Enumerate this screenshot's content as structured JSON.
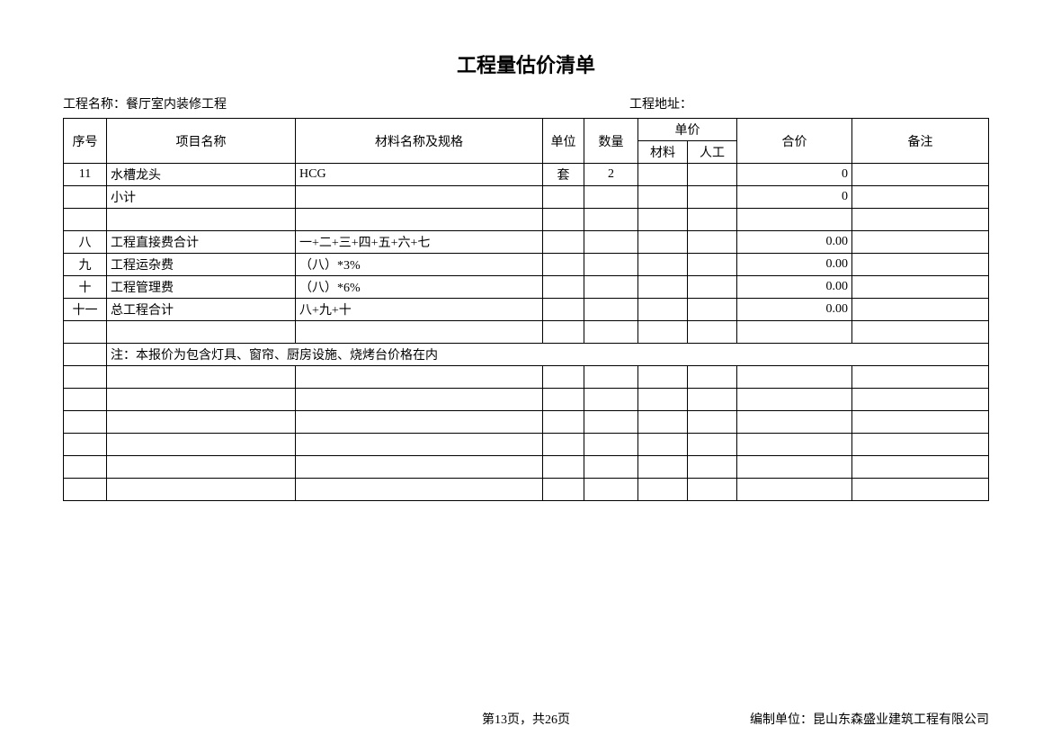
{
  "title": "工程量估价清单",
  "project_name_label": "工程名称：餐厅室内装修工程",
  "project_addr_label": "工程地址：",
  "header": {
    "seq": "序号",
    "name": "项目名称",
    "spec": "材料名称及规格",
    "unit": "单位",
    "qty": "数量",
    "price_group": "单价",
    "material": "材料",
    "labor": "人工",
    "total": "合价",
    "remark": "备注"
  },
  "rows": [
    {
      "seq": "11",
      "name": "水槽龙头",
      "spec": "HCG",
      "unit": "套",
      "qty": "2",
      "material": "",
      "labor": "",
      "total": "0",
      "remark": ""
    },
    {
      "seq": "",
      "name": "小计",
      "spec": "",
      "unit": "",
      "qty": "",
      "material": "",
      "labor": "",
      "total": "0",
      "remark": ""
    },
    {
      "seq": "",
      "name": "",
      "spec": "",
      "unit": "",
      "qty": "",
      "material": "",
      "labor": "",
      "total": "",
      "remark": ""
    },
    {
      "seq": "八",
      "name": "工程直接费合计",
      "spec": "一+二+三+四+五+六+七",
      "unit": "",
      "qty": "",
      "material": "",
      "labor": "",
      "total": "0.00",
      "remark": ""
    },
    {
      "seq": "九",
      "name": "工程运杂费",
      "spec": "（八）*3%",
      "unit": "",
      "qty": "",
      "material": "",
      "labor": "",
      "total": "0.00",
      "remark": ""
    },
    {
      "seq": "十",
      "name": "工程管理费",
      "spec": "（八）*6%",
      "unit": "",
      "qty": "",
      "material": "",
      "labor": "",
      "total": "0.00",
      "remark": ""
    },
    {
      "seq": "十一",
      "name": "总工程合计",
      "spec": "八+九+十",
      "unit": "",
      "qty": "",
      "material": "",
      "labor": "",
      "total": "0.00",
      "remark": ""
    },
    {
      "seq": "",
      "name": "",
      "spec": "",
      "unit": "",
      "qty": "",
      "material": "",
      "labor": "",
      "total": "",
      "remark": ""
    }
  ],
  "note_row": "注：本报价为包含灯具、窗帘、厨房设施、烧烤台价格在内",
  "blank_rows": 6,
  "footer": {
    "page": "第13页，共26页",
    "company": "编制单位：昆山东森盛业建筑工程有限公司"
  }
}
